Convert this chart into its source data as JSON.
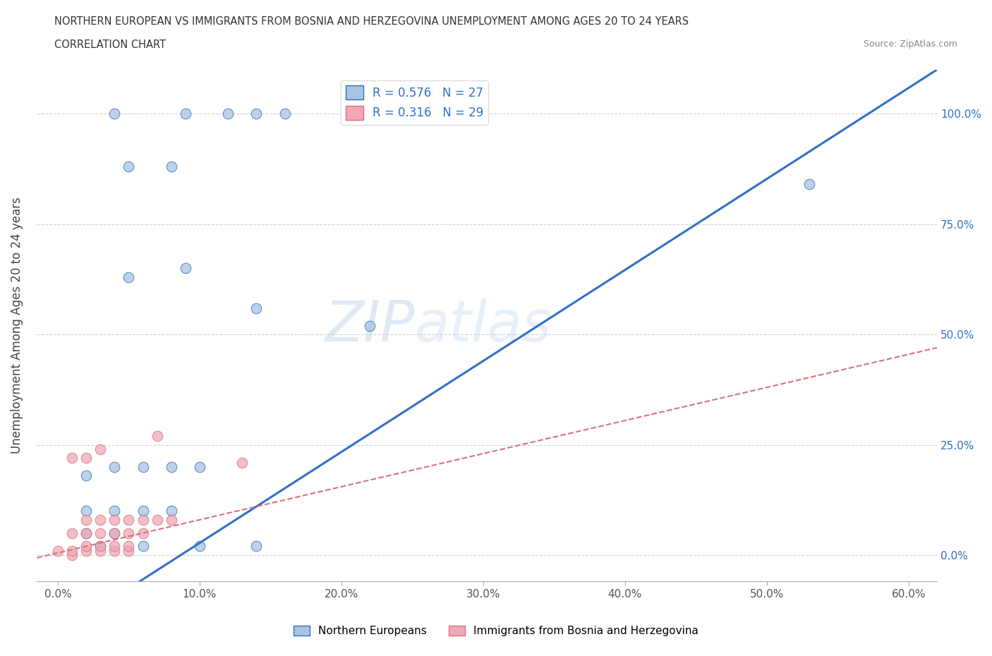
{
  "title_line1": "NORTHERN EUROPEAN VS IMMIGRANTS FROM BOSNIA AND HERZEGOVINA UNEMPLOYMENT AMONG AGES 20 TO 24 YEARS",
  "title_line2": "CORRELATION CHART",
  "source": "Source: ZipAtlas.com",
  "ylabel": "Unemployment Among Ages 20 to 24 years",
  "xticklabels": [
    "0.0%",
    "10.0%",
    "20.0%",
    "30.0%",
    "40.0%",
    "50.0%",
    "60.0%"
  ],
  "ytick_positions": [
    0.0,
    0.25,
    0.5,
    0.75,
    1.0
  ],
  "ytick_labels_right": [
    "0.0%",
    "25.0%",
    "50.0%",
    "75.0%",
    "100.0%"
  ],
  "r_northern": 0.576,
  "n_northern": 27,
  "r_bosnian": 0.316,
  "n_bosnian": 29,
  "northern_color": "#a8c4e0",
  "bosnian_color": "#f0a8b4",
  "trendline_northern_color": "#3070c8",
  "trendline_bosnian_color": "#d87080",
  "watermark_zip": "ZIP",
  "watermark_atlas": "atlas",
  "northern_x": [
    0.04,
    0.09,
    0.12,
    0.14,
    0.16,
    0.05,
    0.08,
    0.05,
    0.09,
    0.14,
    0.22,
    0.53,
    0.02,
    0.04,
    0.06,
    0.08,
    0.1,
    0.02,
    0.04,
    0.06,
    0.08,
    0.02,
    0.04,
    0.03,
    0.06,
    0.1,
    0.14
  ],
  "northern_y": [
    1.0,
    1.0,
    1.0,
    1.0,
    1.0,
    0.88,
    0.88,
    0.63,
    0.65,
    0.56,
    0.52,
    0.84,
    0.18,
    0.2,
    0.2,
    0.2,
    0.2,
    0.1,
    0.1,
    0.1,
    0.1,
    0.05,
    0.05,
    0.02,
    0.02,
    0.02,
    0.02
  ],
  "bosnian_x": [
    0.0,
    0.01,
    0.01,
    0.02,
    0.02,
    0.03,
    0.03,
    0.04,
    0.04,
    0.05,
    0.05,
    0.01,
    0.02,
    0.03,
    0.04,
    0.05,
    0.06,
    0.02,
    0.03,
    0.04,
    0.05,
    0.06,
    0.07,
    0.08,
    0.01,
    0.02,
    0.03,
    0.07,
    0.13
  ],
  "bosnian_y": [
    0.01,
    0.0,
    0.01,
    0.01,
    0.02,
    0.01,
    0.02,
    0.01,
    0.02,
    0.01,
    0.02,
    0.05,
    0.05,
    0.05,
    0.05,
    0.05,
    0.05,
    0.08,
    0.08,
    0.08,
    0.08,
    0.08,
    0.08,
    0.08,
    0.22,
    0.22,
    0.24,
    0.27,
    0.21
  ],
  "northern_trendline": [
    -0.02,
    0.62,
    -0.22,
    1.1
  ],
  "bosnian_trendline": [
    -0.02,
    0.62,
    -0.01,
    0.47
  ]
}
